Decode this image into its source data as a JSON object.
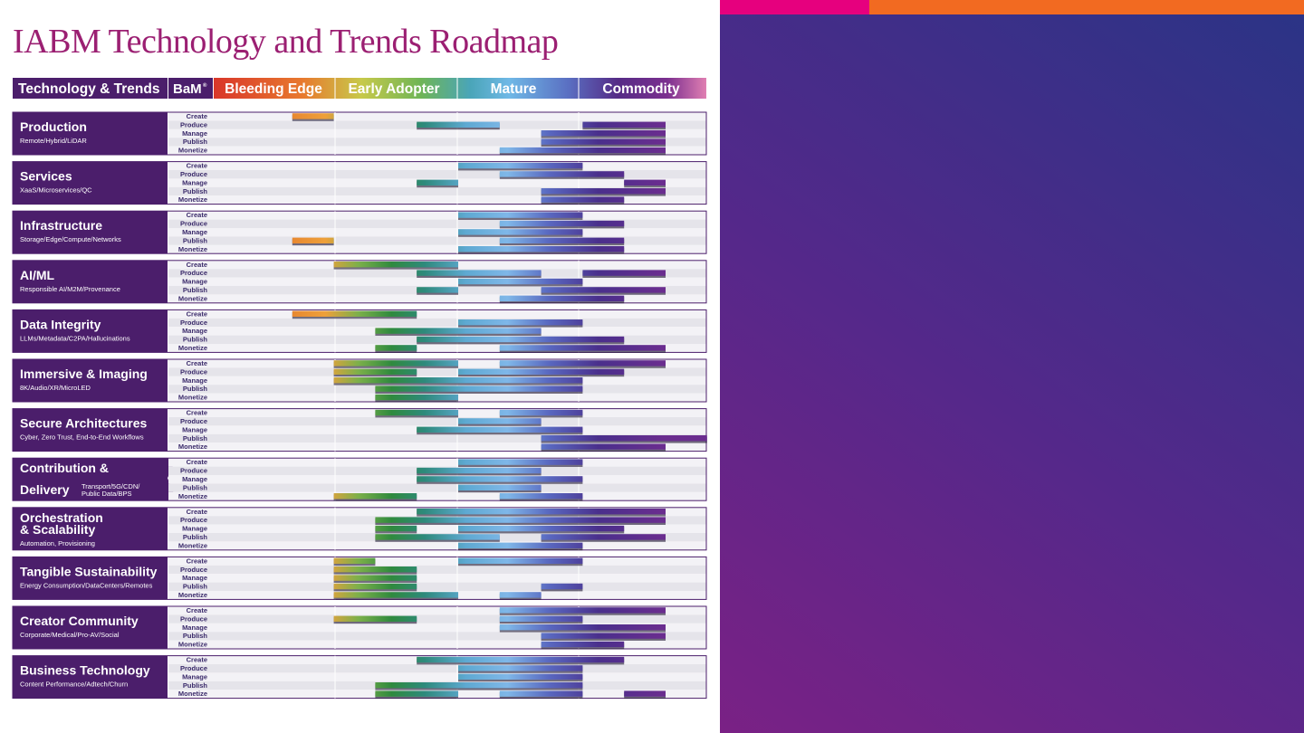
{
  "page": {
    "title": "IABM Technology and Trends Roadmap"
  },
  "colors": {
    "title": "#9b1f72",
    "header_bg": "#4b1e6b",
    "group_bg": "#4b1e6b",
    "right_panel_start": "#7a2185",
    "right_panel_end": "#2a3486",
    "accent_pink": "#e6007e",
    "accent_orange": "#f26a21"
  },
  "chart_data": {
    "type": "gantt",
    "title": "IABM Technology and Trends Roadmap",
    "header": {
      "first_label": "Technology & Trends",
      "bam_label": "BaM",
      "bam_mark": "®"
    },
    "stages": [
      "Bleeding Edge",
      "Early Adopter",
      "Mature",
      "Commodity"
    ],
    "stage_slots": [
      [
        0,
        3
      ],
      [
        3,
        6
      ],
      [
        6,
        9
      ],
      [
        9,
        12
      ]
    ],
    "row_labels": [
      "Create",
      "Produce",
      "Manage",
      "Publish",
      "Monetize"
    ],
    "note": "",
    "groups": [
      {
        "title": "Production",
        "subtitle": "Remote/Hybrid/LiDAR",
        "rows": [
          [
            [
              1,
              2
            ]
          ],
          [
            [
              4,
              6
            ],
            [
              8,
              10
            ]
          ],
          [
            [
              7,
              10
            ]
          ],
          [
            [
              7,
              10
            ]
          ],
          [
            [
              6,
              10
            ]
          ]
        ]
      },
      {
        "title": "Services",
        "subtitle": "XaaS/Microservices/QC",
        "rows": [
          [
            [
              5,
              8
            ]
          ],
          [
            [
              6,
              9
            ]
          ],
          [
            [
              4,
              5
            ],
            [
              9,
              10
            ]
          ],
          [
            [
              7,
              10
            ]
          ],
          [
            [
              7,
              9
            ]
          ]
        ]
      },
      {
        "title": "Infrastructure",
        "subtitle": "Storage/Edge/Compute/Networks",
        "rows": [
          [
            [
              5,
              8
            ]
          ],
          [
            [
              6,
              9
            ]
          ],
          [
            [
              5,
              8
            ]
          ],
          [
            [
              1,
              2
            ],
            [
              6,
              9
            ]
          ],
          [
            [
              5,
              9
            ]
          ]
        ]
      },
      {
        "title": "AI/ML",
        "subtitle": "Responsible AI/M2M/Provenance",
        "rows": [
          [
            [
              2,
              5
            ]
          ],
          [
            [
              4,
              7
            ],
            [
              8,
              10
            ]
          ],
          [
            [
              5,
              8
            ]
          ],
          [
            [
              4,
              5
            ],
            [
              7,
              10
            ]
          ],
          [
            [
              6,
              9
            ]
          ]
        ]
      },
      {
        "title": "Data Integrity",
        "subtitle": "LLMs/Metadata/C2PA/Hallucinations",
        "rows": [
          [
            [
              1,
              4
            ]
          ],
          [
            [
              5,
              8
            ]
          ],
          [
            [
              3,
              7
            ]
          ],
          [
            [
              4,
              9
            ]
          ],
          [
            [
              3,
              4
            ],
            [
              6,
              10
            ]
          ]
        ]
      },
      {
        "title": "Immersive & Imaging",
        "subtitle": "8K/Audio/XR/MicroLED",
        "rows": [
          [
            [
              2,
              5
            ],
            [
              6,
              10
            ]
          ],
          [
            [
              2,
              4
            ],
            [
              5,
              9
            ]
          ],
          [
            [
              2,
              8
            ]
          ],
          [
            [
              3,
              8
            ]
          ],
          [
            [
              3,
              5
            ]
          ]
        ]
      },
      {
        "title": "Secure Architectures",
        "subtitle": "Cyber, Zero Trust, End-to-End Workflows",
        "rows": [
          [
            [
              3,
              5
            ],
            [
              6,
              8
            ]
          ],
          [
            [
              5,
              7
            ]
          ],
          [
            [
              4,
              8
            ]
          ],
          [
            [
              7,
              11
            ]
          ],
          [
            [
              7,
              10
            ]
          ]
        ]
      },
      {
        "title": "Contribution &",
        "subtitle": "Delivery",
        "subtitle2": "Transport/5G/CDN/",
        "subtitle3": "Public Data/BPS",
        "rows": [
          [
            [
              5,
              8
            ]
          ],
          [
            [
              4,
              7
            ]
          ],
          [
            [
              4,
              8
            ]
          ],
          [
            [
              5,
              7
            ]
          ],
          [
            [
              2,
              4
            ],
            [
              6,
              8
            ]
          ]
        ]
      },
      {
        "title": "Orchestration",
        "subtitle": "& Scalability",
        "subtitle2": "Automation, Provisioning",
        "rows": [
          [
            [
              4,
              10
            ]
          ],
          [
            [
              3,
              10
            ]
          ],
          [
            [
              3,
              4
            ],
            [
              5,
              9
            ]
          ],
          [
            [
              3,
              6
            ],
            [
              7,
              10
            ]
          ],
          [
            [
              5,
              8
            ]
          ]
        ]
      },
      {
        "title": "Tangible Sustainability",
        "subtitle": "Energy Consumption/DataCenters/Remotes",
        "rows": [
          [
            [
              2,
              3
            ],
            [
              5,
              8
            ]
          ],
          [
            [
              2,
              4
            ]
          ],
          [
            [
              2,
              4
            ]
          ],
          [
            [
              2,
              4
            ],
            [
              7,
              8
            ]
          ],
          [
            [
              2,
              5
            ],
            [
              6,
              7
            ]
          ]
        ]
      },
      {
        "title": "Creator Community",
        "subtitle": "Corporate/Medical/Pro-AV/Social",
        "rows": [
          [
            [
              6,
              10
            ]
          ],
          [
            [
              2,
              4
            ],
            [
              6,
              8
            ]
          ],
          [
            [
              6,
              10
            ]
          ],
          [
            [
              7,
              10
            ]
          ],
          [
            [
              7,
              9
            ]
          ]
        ]
      },
      {
        "title": "Business Technology",
        "subtitle": "Content Performance/Adtech/Churn",
        "rows": [
          [
            [
              4,
              9
            ]
          ],
          [
            [
              5,
              8
            ]
          ],
          [
            [
              5,
              8
            ]
          ],
          [
            [
              3,
              8
            ]
          ],
          [
            [
              3,
              5
            ],
            [
              6,
              8
            ],
            [
              9,
              10
            ]
          ]
        ]
      }
    ]
  }
}
